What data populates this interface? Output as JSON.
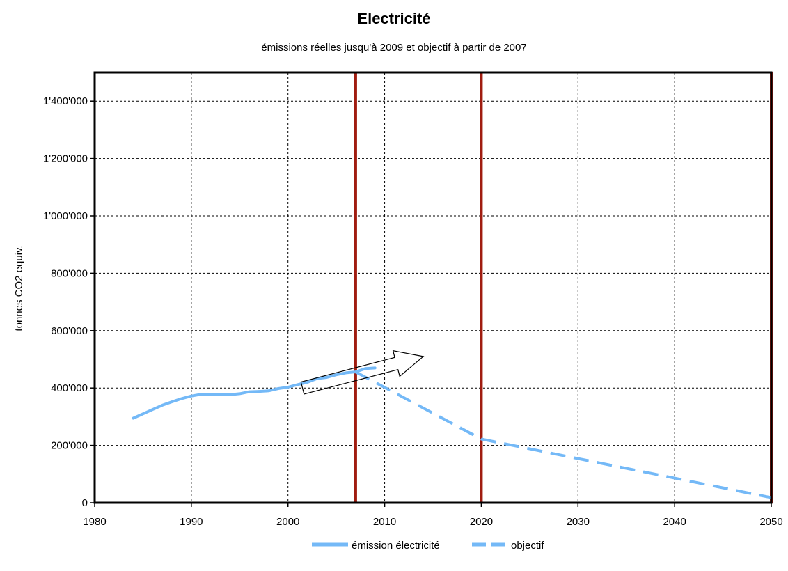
{
  "chart_data": {
    "type": "line",
    "title": "Electricité",
    "subtitle": "émissions réelles jusqu'à 2009 et objectif à partir de 2007",
    "xlabel": "",
    "ylabel": "tonnes CO2 equiv.",
    "xlim": [
      1980,
      2050
    ],
    "ylim": [
      0,
      1500000
    ],
    "x_ticks": [
      1980,
      1990,
      2000,
      2010,
      2020,
      2030,
      2040,
      2050
    ],
    "x_tick_labels": [
      "1980",
      "1990",
      "2000",
      "2010",
      "2020",
      "2030",
      "2040",
      "2050"
    ],
    "y_ticks": [
      0,
      200000,
      400000,
      600000,
      800000,
      1000000,
      1200000,
      1400000
    ],
    "y_tick_labels": [
      "0",
      "200'000",
      "400'000",
      "600'000",
      "800'000",
      "1'000'000",
      "1'200'000",
      "1'400'000"
    ],
    "grid": true,
    "legend_position": "bottom-center",
    "vertical_markers": [
      2007,
      2020,
      2050
    ],
    "marker_color": "#a01c10",
    "series": [
      {
        "name": "émission électricité",
        "style": "solid",
        "color": "#74b9f7",
        "x": [
          1984,
          1985,
          1986,
          1987,
          1988,
          1989,
          1990,
          1991,
          1992,
          1993,
          1994,
          1995,
          1996,
          1997,
          1998,
          1999,
          2000,
          2001,
          2002,
          2003,
          2004,
          2005,
          2006,
          2007,
          2008,
          2009
        ],
        "y": [
          295000,
          310000,
          325000,
          340000,
          352000,
          363000,
          372000,
          378000,
          378000,
          377000,
          377000,
          380000,
          387000,
          388000,
          390000,
          398000,
          403000,
          412000,
          420000,
          433000,
          437000,
          446000,
          453000,
          456000,
          468000,
          470000
        ]
      },
      {
        "name": "objectif",
        "style": "dashed",
        "color": "#74b9f7",
        "x": [
          2007,
          2020,
          2050
        ],
        "y": [
          456000,
          222000,
          18000
        ]
      }
    ],
    "annotations": [
      {
        "type": "arrow",
        "from": [
          2001.5,
          400000
        ],
        "to": [
          2014,
          510000
        ]
      }
    ]
  }
}
